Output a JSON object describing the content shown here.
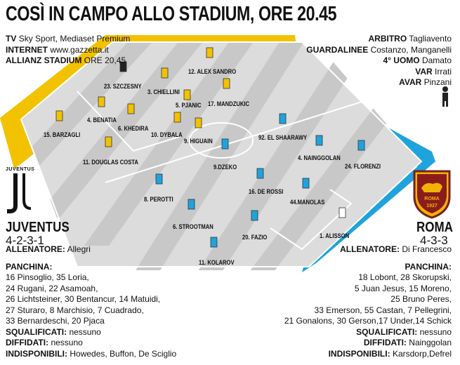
{
  "title": "COSÌ IN CAMPO ALLO STADIUM, ORE 20.45",
  "left_info": {
    "tv_label": "TV",
    "tv_value": "Sky Sport, Mediaset Premium",
    "internet_label": "INTERNET",
    "internet_value": "www.gazzetta.it",
    "stadium_label": "ALLIANZ STADIUM",
    "stadium_value": "ORE 20,45"
  },
  "right_info": {
    "arbitro_label": "ARBITRO",
    "arbitro_value": "Tagliavento",
    "guardalinee_label": "GUARDALINEE",
    "guardalinee_value": "Costanzo, Manganelli",
    "quarto_label": "4° UOMO",
    "quarto_value": "Damato",
    "var_label": "VAR",
    "var_value": "Irrati",
    "avar_label": "AVAR",
    "avar_value": "Pinzani"
  },
  "juventus": {
    "crest_label": "JUVENTUS",
    "name": "JUVENTUS",
    "module": "4-2-3-1",
    "allenatore_label": "ALLENATORE:",
    "allenatore": "Allegri",
    "panchina_label": "PANCHINA:",
    "panchina_lines": [
      "16 Pinsoglio, 35 Loria,",
      "24 Rugani, 22 Asamoah,",
      "26 Lichtsteiner, 30 Bentancur, 14 Matuidi,",
      "27 Sturaro, 8 Marchisio, 7 Cuadrado,",
      "33 Bernardeschi, 20 Pjaca"
    ],
    "squalificati_label": "SQUALIFICATI:",
    "squalificati": "nessuno",
    "diffidati_label": "DIFFIDATI:",
    "diffidati": "nessuno",
    "indisponibili_label": "INDISPONIBILI:",
    "indisponibili": "Howedes, Buffon, De Sciglio",
    "color": "#f2c200",
    "players": [
      "23. SZCZESNY",
      "12. ALEX SANDRO",
      "3. CHIELLINI",
      "5. PJANIC",
      "17. MANDZUKIC",
      "4. BENATIA",
      "6. KHEDIRA",
      "10. DYBALA",
      "9. HIGUAIN",
      "15. BARZAGLI",
      "11. DOUGLAS COSTA"
    ]
  },
  "roma": {
    "crest_year": "1927",
    "crest_label": "ROMA",
    "name": "ROMA",
    "module": "4-3-3",
    "allenatore_label": "ALLENATORE:",
    "allenatore": "Di Francesco",
    "panchina_label": "PANCHINA:",
    "panchina_lines": [
      "18 Lobont, 28 Skorupski,",
      "5 Juan Jesus, 15 Moreno,",
      "25 Bruno Peres,",
      "33 Emerson, 55 Castan, 7 Pellegrini,",
      "21 Gonalons, 30 Gerson,17 Under,14 Schick"
    ],
    "squalificati_label": "SQUALIFICATI:",
    "squalificati": "nessuno",
    "diffidati_label": "DIFFIDATI:",
    "diffidati": "Nainggolan",
    "indisponibili_label": "INDISPONIBILI:",
    "indisponibili": "Karsdorp,Defrel",
    "color": "#1fa3dc",
    "players": [
      "92. EL SHAARAWY",
      "4. NAINGGOLAN",
      "24. FLORENZI",
      "9.DZEKO",
      "16. DE ROSSI",
      "44.MANOLAS",
      "8. PEROTTI",
      "6. STROOTMAN",
      "20. FAZIO",
      "1. ALISSON",
      "11. KOLAROV"
    ]
  }
}
